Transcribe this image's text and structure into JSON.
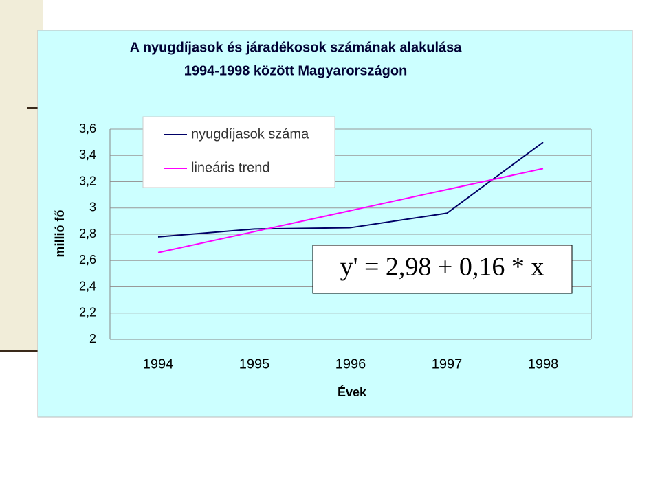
{
  "chart_data": {
    "type": "line",
    "title": [
      "A nyugdíjasok és járadékosok számának alakulása",
      "1994-1998 között Magyarországon"
    ],
    "y_label": "millió fő",
    "x_label": "Évek",
    "categories": [
      "1994",
      "1995",
      "1996",
      "1997",
      "1998"
    ],
    "series": [
      {
        "name": "nyugdíjasok száma",
        "color": "#000066",
        "values": [
          2.78,
          2.84,
          2.85,
          2.96,
          3.5
        ]
      },
      {
        "name": "lineáris trend",
        "color": "#ff00ff",
        "values": [
          2.66,
          2.82,
          2.98,
          3.14,
          3.3
        ]
      }
    ],
    "ylim": [
      2,
      3.6
    ],
    "yticks": [
      2,
      {
        "value": 2.2,
        "label": "2,2"
      },
      {
        "value": 2.4,
        "label": "2,4"
      },
      {
        "value": 2.6,
        "label": "2,6"
      },
      {
        "value": 2.8,
        "label": "2,8"
      },
      3,
      {
        "value": 3.2,
        "label": "3,2"
      },
      {
        "value": 3.4,
        "label": "3,4"
      },
      {
        "value": 3.6,
        "label": "3,6"
      }
    ],
    "grid": true,
    "annotation": "y' = 2,98 + 0,16 * x"
  }
}
